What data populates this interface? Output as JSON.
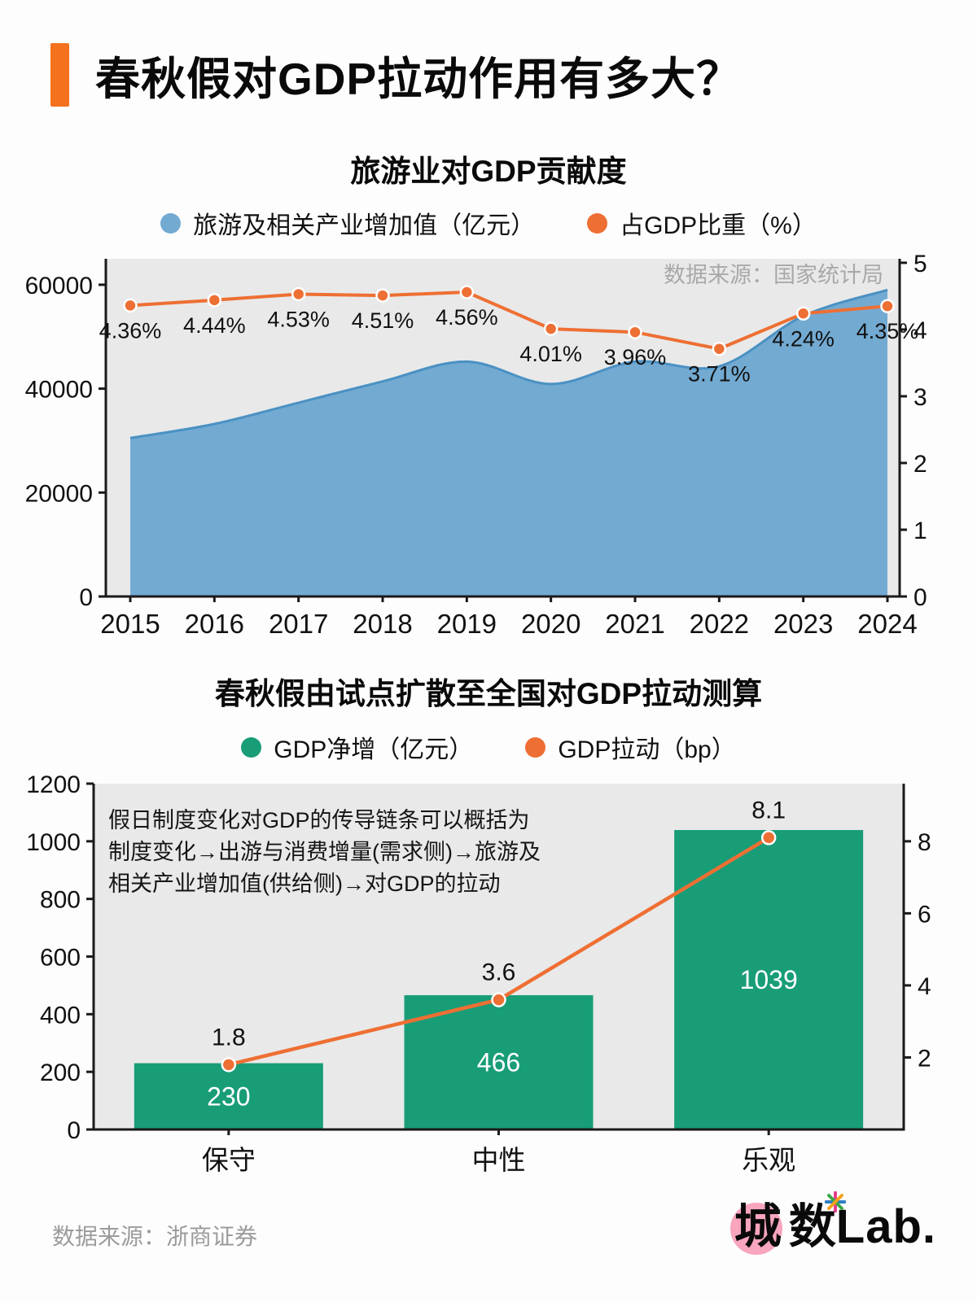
{
  "page": {
    "title": "春秋假对GDP拉动作用有多大？",
    "accent_color": "#f4711e",
    "footer_source": "数据来源：浙商证券",
    "logo": {
      "char1": "城",
      "char2": "数",
      "suffix": "Lab.",
      "circle_color": "#f8a5bd",
      "asterisk_colors": [
        "#e5398b",
        "#2f7fc1",
        "#3aa845",
        "#f5a21b"
      ]
    }
  },
  "chart_data": [
    {
      "type": "area",
      "title": "旅游业对GDP贡献度",
      "source_note": "数据来源：国家统计局",
      "categories": [
        "2015",
        "2016",
        "2017",
        "2018",
        "2019",
        "2020",
        "2021",
        "2022",
        "2023",
        "2024"
      ],
      "series": [
        {
          "name": "旅游及相关产业增加值（亿元）",
          "kind": "area",
          "axis": "left",
          "color": "#73aad2",
          "stroke": "#4a91c3",
          "values": [
            30500,
            33200,
            37300,
            41400,
            45200,
            40900,
            45200,
            44300,
            54000,
            59000
          ]
        },
        {
          "name": "占GDP比重（%）",
          "kind": "line",
          "axis": "right",
          "color": "#ee6f33",
          "values": [
            4.36,
            4.44,
            4.53,
            4.51,
            4.56,
            4.01,
            3.96,
            3.71,
            4.24,
            4.35
          ],
          "point_labels": [
            "4.36%",
            "4.44%",
            "4.53%",
            "4.51%",
            "4.56%",
            "4.01%",
            "3.96%",
            "3.71%",
            "4.24%",
            "4.35%"
          ]
        }
      ],
      "left_axis": {
        "min": 0,
        "max": 65000,
        "ticks": [
          0,
          20000,
          40000,
          60000
        ]
      },
      "right_axis": {
        "min": 0,
        "max": 5.06,
        "ticks": [
          0,
          1,
          2,
          3,
          4,
          5
        ]
      },
      "plot_bg": "#e9e9e9"
    },
    {
      "type": "bar",
      "title": "春秋假由试点扩散至全国对GDP拉动测算",
      "annotation_lines": [
        "假日制度变化对GDP的传导链条可以概括为",
        "制度变化→出游与消费增量(需求侧)→旅游及",
        "相关产业增加值(供给侧)→对GDP的拉动"
      ],
      "categories": [
        "保守",
        "中性",
        "乐观"
      ],
      "series": [
        {
          "name": "GDP净增（亿元）",
          "kind": "bar",
          "axis": "left",
          "color": "#189d77",
          "values": [
            230,
            466,
            1039
          ]
        },
        {
          "name": "GDP拉动（bp）",
          "kind": "line",
          "axis": "right",
          "color": "#ee6f33",
          "values": [
            1.8,
            3.6,
            8.1
          ],
          "point_labels": [
            "1.8",
            "3.6",
            "8.1"
          ]
        }
      ],
      "left_axis": {
        "min": 0,
        "max": 1200,
        "ticks": [
          0,
          200,
          400,
          600,
          800,
          1000,
          1200
        ]
      },
      "right_axis": {
        "min": 0,
        "max": 9.6,
        "ticks": [
          2,
          4,
          6,
          8
        ]
      },
      "plot_bg": "#e9e9e9"
    }
  ]
}
